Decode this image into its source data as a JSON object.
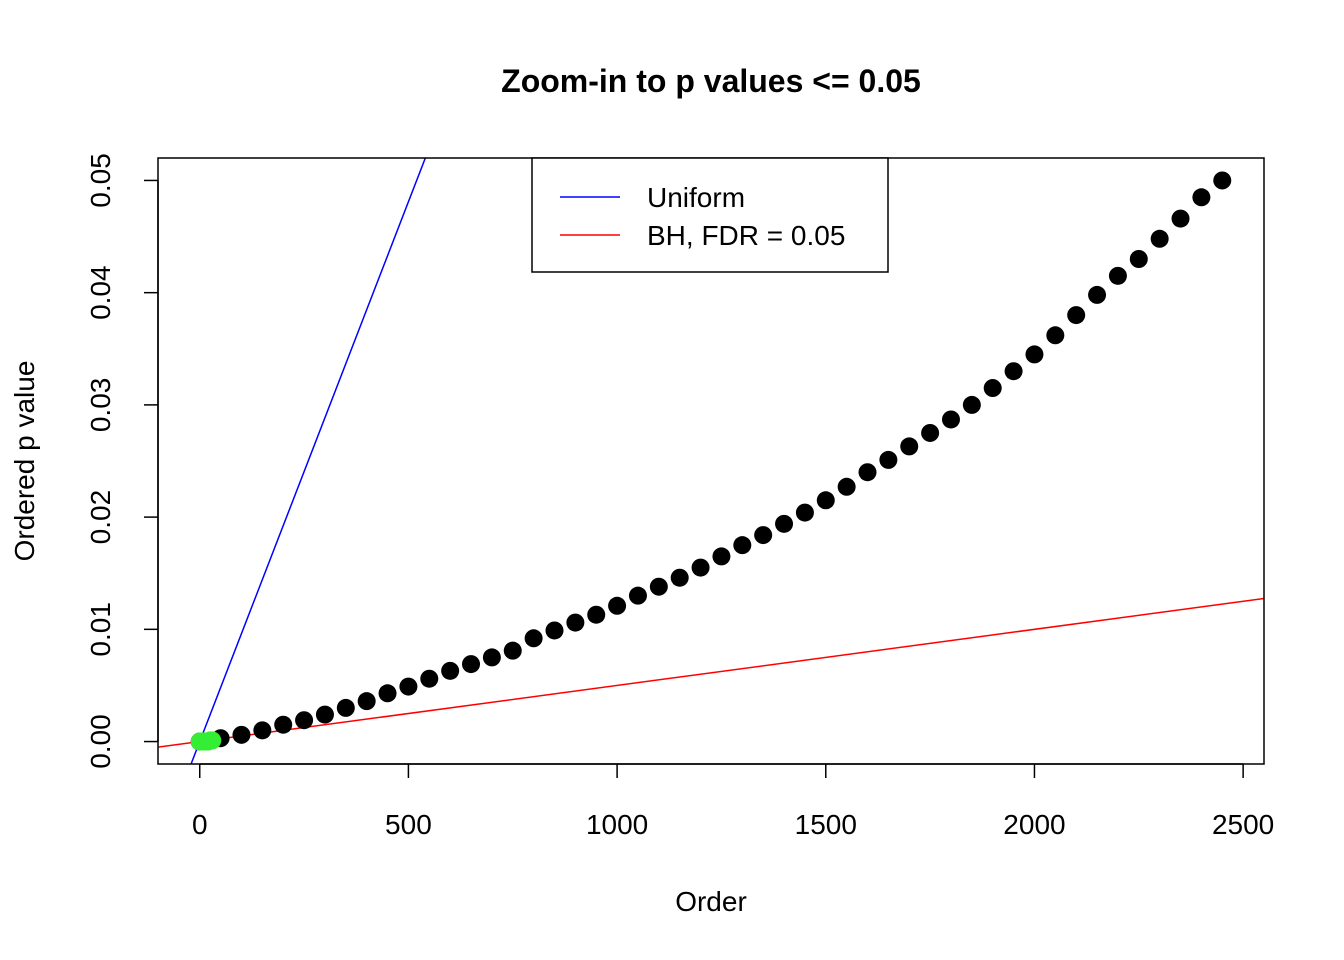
{
  "chart_data": {
    "type": "scatter",
    "title": "Zoom-in to p values <= 0.05",
    "xlabel": "Order",
    "ylabel": "Ordered p value",
    "xlim": [
      -100,
      2550
    ],
    "ylim": [
      -0.002,
      0.052
    ],
    "x_ticks": [
      0,
      500,
      1000,
      1500,
      2000,
      2500
    ],
    "x_tick_labels": [
      "0",
      "500",
      "1000",
      "1500",
      "2000",
      "2500"
    ],
    "y_ticks": [
      0.0,
      0.01,
      0.02,
      0.03,
      0.04,
      0.05
    ],
    "y_tick_labels": [
      "0.00",
      "0.01",
      "0.02",
      "0.03",
      "0.04",
      "0.05"
    ],
    "grid": false,
    "legend_position": "top",
    "series": [
      {
        "kind": "points",
        "color": "#000000",
        "x": [
          0,
          50,
          100,
          150,
          200,
          250,
          300,
          350,
          400,
          450,
          500,
          550,
          600,
          650,
          700,
          750,
          800,
          850,
          900,
          950,
          1000,
          1050,
          1100,
          1150,
          1200,
          1250,
          1300,
          1350,
          1400,
          1450,
          1500,
          1550,
          1600,
          1650,
          1700,
          1750,
          1800,
          1850,
          1900,
          1950,
          2000,
          2050,
          2100,
          2150,
          2200,
          2250,
          2300,
          2350,
          2400,
          2450
        ],
        "y": [
          0.0,
          0.0003,
          0.0006,
          0.001,
          0.0015,
          0.0019,
          0.0024,
          0.003,
          0.0036,
          0.0043,
          0.0049,
          0.0056,
          0.0063,
          0.0069,
          0.0075,
          0.0081,
          0.0092,
          0.0099,
          0.0106,
          0.0113,
          0.0121,
          0.013,
          0.0138,
          0.0146,
          0.0155,
          0.0165,
          0.0175,
          0.0184,
          0.0194,
          0.0204,
          0.0215,
          0.0227,
          0.024,
          0.0251,
          0.0263,
          0.0275,
          0.0287,
          0.03,
          0.0315,
          0.033,
          0.0345,
          0.0362,
          0.038,
          0.0398,
          0.0415,
          0.043,
          0.0448,
          0.0466,
          0.0485,
          0.05
        ]
      },
      {
        "kind": "points",
        "color": "#33ee33",
        "x": [
          0,
          5,
          10,
          15,
          20,
          25,
          30
        ],
        "y": [
          0.0,
          0.0,
          0.0,
          0.0,
          0.0,
          0.0001,
          0.0001
        ]
      },
      {
        "kind": "line",
        "name": "Uniform",
        "color": "#0000ff",
        "slope": 9.62e-05,
        "intercept": 0
      },
      {
        "kind": "line",
        "name": "BH, FDR = 0.05",
        "color": "#ff0000",
        "slope": 5e-06,
        "intercept": 0
      }
    ],
    "legend": [
      {
        "label": "Uniform",
        "color": "#0000ff"
      },
      {
        "label": "BH, FDR = 0.05",
        "color": "#ff0000"
      }
    ]
  }
}
